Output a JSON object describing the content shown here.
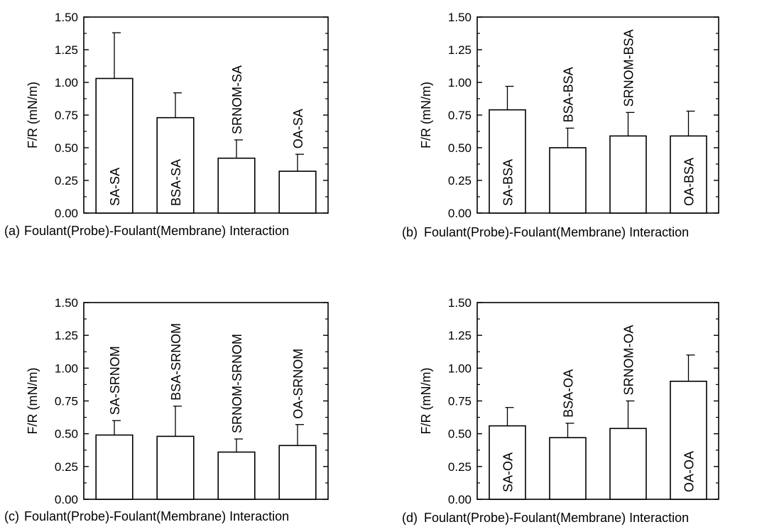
{
  "chart_data": [
    {
      "type": "bar",
      "panel_tag": "(a)",
      "xlabel": "Foulant(Probe)-Foulant(Membrane) Interaction",
      "ylabel": "F/R (mN/m)",
      "ylim": [
        0,
        1.5
      ],
      "yticks": [
        "0.00",
        "0.25",
        "0.50",
        "0.75",
        "1.00",
        "1.25",
        "1.50"
      ],
      "grid": false,
      "categories": [
        "SA-SA",
        "BSA-SA",
        "SRNOM-SA",
        "OA-SA"
      ],
      "values": [
        1.03,
        0.73,
        0.42,
        0.32
      ],
      "errors": [
        0.35,
        0.19,
        0.14,
        0.13
      ],
      "label_positions": [
        "inside",
        "inside",
        "above",
        "above"
      ]
    },
    {
      "type": "bar",
      "panel_tag": "(b)",
      "xlabel": "Foulant(Probe)-Foulant(Membrane) Interaction",
      "ylabel": "F/R (mN/m)",
      "ylim": [
        0,
        1.5
      ],
      "yticks": [
        "0.00",
        "0.25",
        "0.50",
        "0.75",
        "1.00",
        "1.25",
        "1.50"
      ],
      "grid": false,
      "categories": [
        "SA-BSA",
        "BSA-BSA",
        "SRNOM-BSA",
        "OA-BSA"
      ],
      "values": [
        0.79,
        0.5,
        0.59,
        0.59
      ],
      "errors": [
        0.18,
        0.15,
        0.18,
        0.19
      ],
      "label_positions": [
        "inside",
        "above",
        "above",
        "inside"
      ]
    },
    {
      "type": "bar",
      "panel_tag": "(c)",
      "xlabel": "Foulant(Probe)-Foulant(Membrane) Interaction",
      "ylabel": "F/R (mN/m)",
      "ylim": [
        0,
        1.5
      ],
      "yticks": [
        "0.00",
        "0.25",
        "0.50",
        "0.75",
        "1.00",
        "1.25",
        "1.50"
      ],
      "grid": false,
      "categories": [
        "SA-SRNOM",
        "BSA-SRNOM",
        "SRNOM-SRNOM",
        "OA-SRNOM"
      ],
      "values": [
        0.49,
        0.48,
        0.36,
        0.41
      ],
      "errors": [
        0.11,
        0.23,
        0.1,
        0.16
      ],
      "label_positions": [
        "above",
        "above",
        "above",
        "above"
      ]
    },
    {
      "type": "bar",
      "panel_tag": "(d)",
      "xlabel": "Foulant(Probe)-Foulant(Membrane) Interaction",
      "ylabel": "F/R (mN/m)",
      "ylim": [
        0,
        1.5
      ],
      "yticks": [
        "0.00",
        "0.25",
        "0.50",
        "0.75",
        "1.00",
        "1.25",
        "1.50"
      ],
      "grid": false,
      "categories": [
        "SA-OA",
        "BSA-OA",
        "SRNOM-OA",
        "OA-OA"
      ],
      "values": [
        0.56,
        0.47,
        0.54,
        0.9
      ],
      "errors": [
        0.14,
        0.11,
        0.21,
        0.2
      ],
      "label_positions": [
        "inside",
        "above",
        "above",
        "inside"
      ]
    }
  ]
}
